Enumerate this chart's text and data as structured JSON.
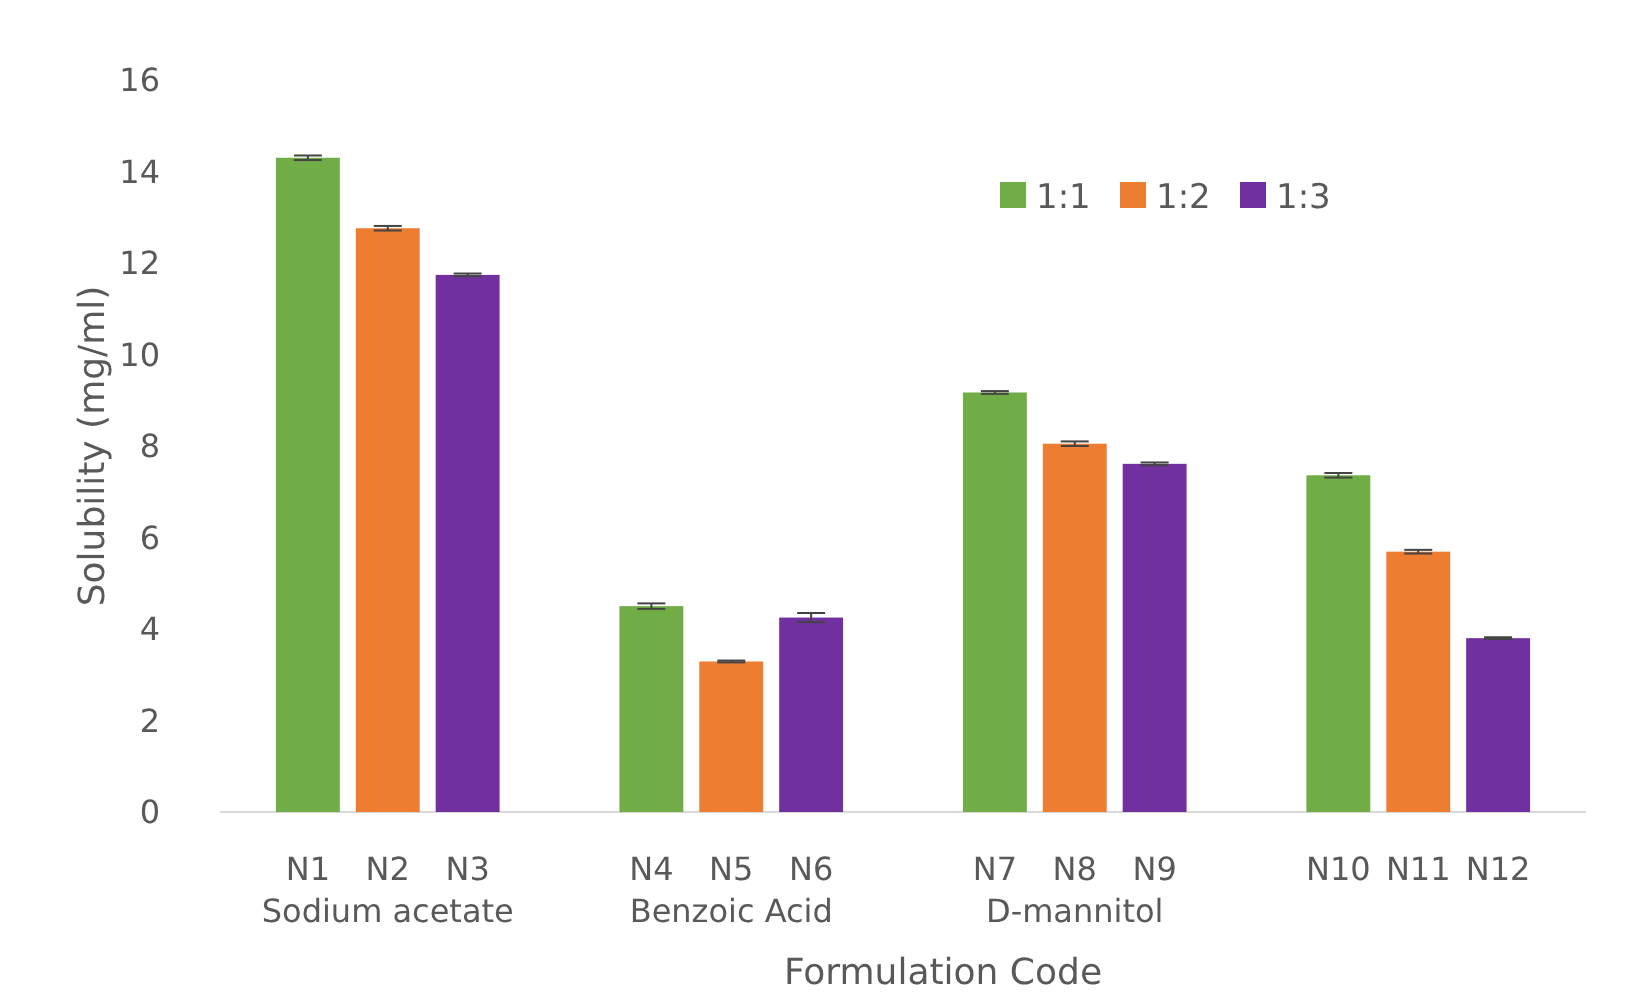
{
  "chart_data": {
    "type": "bar",
    "xlabel": "Formulation Code",
    "ylabel": "Solubility (mg/ml)",
    "categories": [
      "N1",
      "N2",
      "N3",
      "N4",
      "N5",
      "N6",
      "N7",
      "N8",
      "N9",
      "N10",
      "N11",
      "N12"
    ],
    "series": [
      {
        "name": "1:1",
        "color": "#70ad47",
        "values": [
          14.3,
          null,
          null,
          4.5,
          null,
          null,
          9.17,
          null,
          null,
          7.36,
          null,
          null
        ],
        "errors": [
          0.05,
          null,
          null,
          0.06,
          null,
          null,
          0.03,
          null,
          null,
          0.05,
          null,
          null
        ]
      },
      {
        "name": "1:2",
        "color": "#ed7d31",
        "values": [
          null,
          12.76,
          null,
          null,
          3.29,
          null,
          null,
          8.05,
          null,
          null,
          5.69,
          null
        ],
        "errors": [
          null,
          0.05,
          null,
          null,
          0.02,
          null,
          null,
          0.05,
          null,
          null,
          0.04,
          null
        ]
      },
      {
        "name": "1:3",
        "color": "#7030a0",
        "values": [
          null,
          null,
          11.74,
          null,
          null,
          4.25,
          null,
          null,
          7.61,
          null,
          null,
          3.8
        ],
        "errors": [
          null,
          null,
          0.03,
          null,
          null,
          0.1,
          null,
          null,
          0.03,
          null,
          null,
          0.02
        ]
      }
    ],
    "annotations": [
      "Sodium acetate",
      "Benzoic Acid",
      "D-mannitol"
    ],
    "ylim": [
      0,
      16
    ],
    "yticks": [
      0,
      2,
      4,
      6,
      8,
      10,
      12,
      14,
      16
    ],
    "grid": false,
    "legend": "top right"
  }
}
